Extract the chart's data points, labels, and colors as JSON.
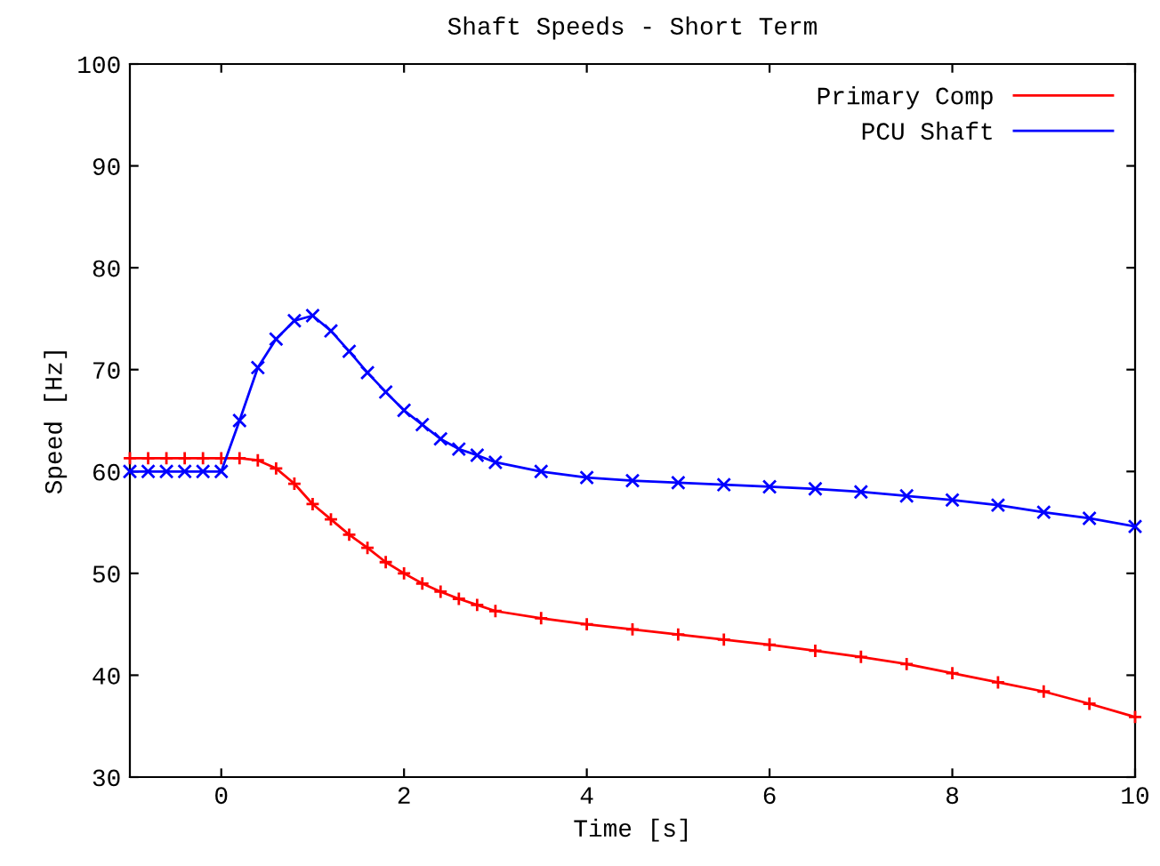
{
  "chart_data": {
    "type": "line",
    "title": "Shaft Speeds - Short Term",
    "xlabel": "Time [s]",
    "ylabel": "Speed [Hz]",
    "xlim": [
      -1,
      10
    ],
    "ylim": [
      30,
      100
    ],
    "xticks": [
      0,
      2,
      4,
      6,
      8,
      10
    ],
    "yticks": [
      30,
      40,
      50,
      60,
      70,
      80,
      90,
      100
    ],
    "grid": false,
    "legend": "top right",
    "x": [
      -1,
      -0.8,
      -0.6,
      -0.4,
      -0.2,
      0,
      0.2,
      0.4,
      0.6,
      0.8,
      1.0,
      1.2,
      1.4,
      1.6,
      1.8,
      2.0,
      2.2,
      2.4,
      2.6,
      2.8,
      3.0,
      3.5,
      4,
      4.5,
      5,
      5.5,
      6,
      6.5,
      7,
      7.5,
      8,
      8.5,
      9,
      9.5,
      10
    ],
    "series": [
      {
        "name": "Primary Comp",
        "color": "#ff0000",
        "marker": "plus",
        "values": [
          61.3,
          61.3,
          61.3,
          61.3,
          61.3,
          61.3,
          61.3,
          61.1,
          60.3,
          58.8,
          56.8,
          55.3,
          53.8,
          52.5,
          51.1,
          50.0,
          49.0,
          48.2,
          47.5,
          46.9,
          46.3,
          45.6,
          45.0,
          44.5,
          44.0,
          43.5,
          43.0,
          42.4,
          41.8,
          41.1,
          40.2,
          39.3,
          38.4,
          37.2,
          35.9
        ]
      },
      {
        "name": "PCU Shaft",
        "color": "#0000ff",
        "marker": "cross",
        "values": [
          60,
          60,
          60,
          60,
          60,
          60,
          65,
          70.2,
          73,
          74.8,
          75.3,
          73.8,
          71.8,
          69.7,
          67.8,
          66.0,
          64.6,
          63.2,
          62.2,
          61.6,
          60.9,
          60.0,
          59.4,
          59.1,
          58.9,
          58.7,
          58.5,
          58.3,
          58.0,
          57.6,
          57.2,
          56.7,
          56.0,
          55.4,
          54.6
        ]
      }
    ]
  }
}
